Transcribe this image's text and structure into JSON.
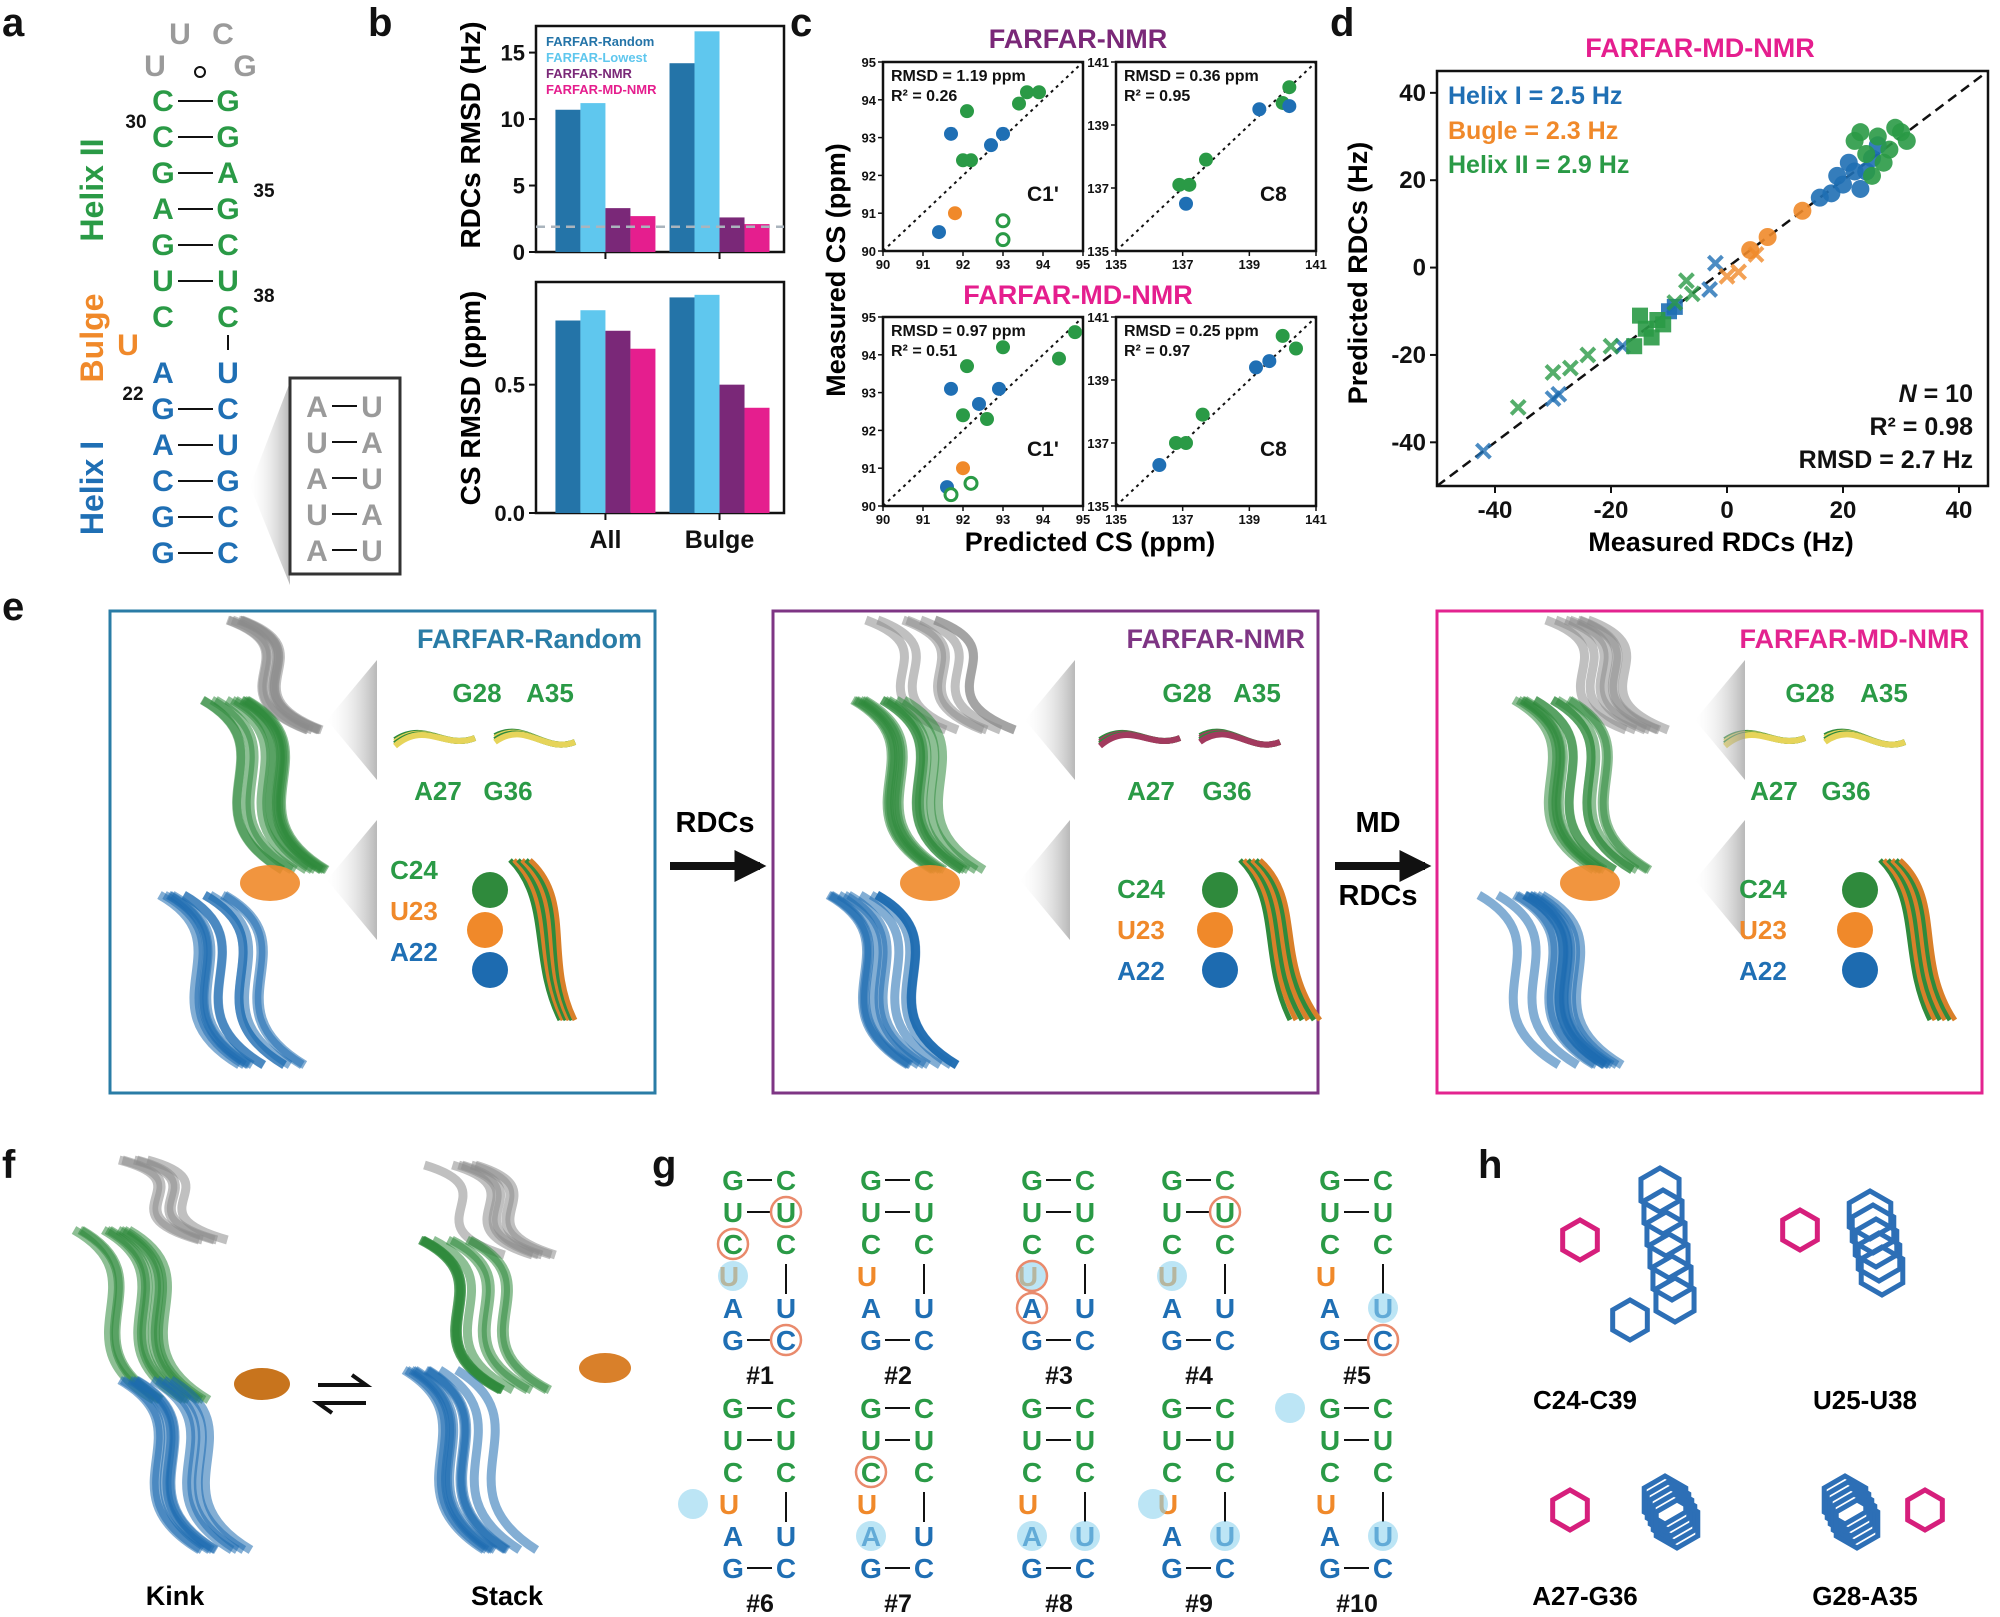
{
  "panel_letters": [
    "a",
    "b",
    "c",
    "d",
    "e",
    "f",
    "g",
    "h"
  ],
  "colors": {
    "helix1": "#1f6fb4",
    "helix2": "#2a9a46",
    "bulge": "#f0892a",
    "loop": "#9a9a9a",
    "random": "#2474a8",
    "lowest": "#5fc7ee",
    "nmr": "#7a2878",
    "mdnmr": "#e51e8e",
    "box_random": "#2a7ca6",
    "box_nmr": "#7e3584",
    "box_mdnmr": "#e3238f"
  },
  "panel_a": {
    "loop": [
      "U",
      "U",
      "C",
      "G"
    ],
    "helix2_left": [
      "C",
      "C",
      "G",
      "A",
      "G",
      "U",
      "C"
    ],
    "helix2_right": [
      "G",
      "G",
      "A",
      "G",
      "C",
      "U",
      "C"
    ],
    "bulge_base": "U",
    "helix1_left": [
      "A",
      "G",
      "A",
      "C",
      "G",
      "G"
    ],
    "helix1_right": [
      "U",
      "C",
      "U",
      "G",
      "C",
      "C"
    ],
    "num30": "30",
    "num35": "35",
    "num38": "38",
    "num22": "22",
    "helix2_label": "Helix II",
    "bulge_label": "Bulge",
    "helix1_label": "Helix I",
    "inset_left": [
      "A",
      "U",
      "A",
      "U",
      "A"
    ],
    "inset_right": [
      "U",
      "A",
      "U",
      "A",
      "U"
    ]
  },
  "panel_b": {
    "top_ylabel": "RDCs RMSD (Hz)",
    "bottom_ylabel": "CS RMSD (ppm)",
    "legend": [
      "FARFAR-Random",
      "FARFAR-Lowest",
      "FARFAR-NMR",
      "FARFAR-MD-NMR"
    ],
    "top_ticks": [
      "0",
      "5",
      "10",
      "15"
    ],
    "bottom_ticks": [
      "0.0",
      "0.5"
    ]
  },
  "panel_c": {
    "title_top": "FARFAR-NMR",
    "title_bottom": "FARFAR-MD-NMR",
    "ylabel": "Measured CS (ppm)",
    "xlabel": "Predicted CS (ppm)",
    "c1_ticks": [
      "90",
      "91",
      "92",
      "93",
      "94",
      "95"
    ],
    "c8_ticks": [
      "135",
      "137",
      "139",
      "141"
    ],
    "tl_stats": [
      "RMSD = 1.19 ppm",
      "R² = 0.26"
    ],
    "tl_label": "C1'",
    "tr_stats": [
      "RMSD = 0.36 ppm",
      "R² = 0.95"
    ],
    "tr_label": "C8",
    "bl_stats": [
      "RMSD = 0.97 ppm",
      "R² = 0.51"
    ],
    "bl_label": "C1'",
    "br_stats": [
      "RMSD = 0.25 ppm",
      "R² = 0.97"
    ],
    "br_label": "C8"
  },
  "panel_d": {
    "title": "FARFAR-MD-NMR",
    "legend": [
      "Helix I = 2.5 Hz",
      "Bugle = 2.3 Hz",
      "Helix II = 2.9 Hz"
    ],
    "stat_n_label": "N",
    "stat_n_value": " = 10",
    "stat_r2": "R² = 0.98",
    "stat_rmsd": "RMSD = 2.7 Hz",
    "xlabel": "Measured RDCs (Hz)",
    "ylabel": "Predicted RDCs (Hz)",
    "xticks": [
      "-40",
      "-20",
      "0",
      "20",
      "40"
    ],
    "yticks": [
      "40",
      "20",
      "0",
      "-20",
      "-40"
    ]
  },
  "panel_e": {
    "boxes": [
      {
        "title": "FARFAR-Random",
        "pair_labels": [
          "G28",
          "A35",
          "A27",
          "G36"
        ],
        "stack_labels": [
          "C24",
          "U23",
          "A22"
        ]
      },
      {
        "title": "FARFAR-NMR",
        "pair_labels": [
          "G28",
          "A35",
          "A27",
          "G36"
        ],
        "stack_labels": [
          "C24",
          "U23",
          "A22"
        ]
      },
      {
        "title": "FARFAR-MD-NMR",
        "pair_labels": [
          "G28",
          "A35",
          "A27",
          "G36"
        ],
        "stack_labels": [
          "C24",
          "U23",
          "A22"
        ]
      }
    ],
    "arrow1": "RDCs",
    "arrow2_top": "MD",
    "arrow2_bottom": "RDCs"
  },
  "panel_f": {
    "left": "Kink",
    "right": "Stack"
  },
  "panel_g": {
    "left_col": [
      "G",
      "U",
      "C",
      "U",
      "A",
      "G"
    ],
    "right_col": [
      "C",
      "U",
      "C",
      "",
      "U",
      "C"
    ],
    "labels": [
      "#1",
      "#2",
      "#3",
      "#4",
      "#5",
      "#6",
      "#7",
      "#8",
      "#9",
      "#10"
    ]
  },
  "panel_h": {
    "labels": [
      "C24-C39",
      "U25-U38",
      "A27-G36",
      "G28-A35"
    ]
  },
  "chart_data": [
    {
      "type": "bar",
      "categories": [
        "All",
        "Bulge"
      ],
      "ylabel": "RDCs RMSD (Hz)",
      "ylim": [
        0,
        17
      ],
      "series": [
        {
          "name": "FARFAR-Random",
          "values": [
            10.7,
            14.2
          ]
        },
        {
          "name": "FARFAR-Lowest",
          "values": [
            11.2,
            16.6
          ]
        },
        {
          "name": "FARFAR-NMR",
          "values": [
            3.3,
            2.6
          ]
        },
        {
          "name": "FARFAR-MD-NMR",
          "values": [
            2.7,
            2.1
          ]
        }
      ],
      "reference_line": 1.9
    },
    {
      "type": "bar",
      "categories": [
        "All",
        "Bulge"
      ],
      "ylabel": "CS RMSD (ppm)",
      "ylim": [
        0,
        0.9
      ],
      "series": [
        {
          "name": "FARFAR-Random",
          "values": [
            0.75,
            0.84
          ]
        },
        {
          "name": "FARFAR-Lowest",
          "values": [
            0.79,
            0.85
          ]
        },
        {
          "name": "FARFAR-NMR",
          "values": [
            0.71,
            0.5
          ]
        },
        {
          "name": "FARFAR-MD-NMR",
          "values": [
            0.64,
            0.41
          ]
        }
      ]
    },
    {
      "type": "scatter",
      "title": "FARFAR-NMR",
      "label": "C1'",
      "xlim": [
        90,
        95
      ],
      "ylim": [
        90,
        95
      ],
      "points": [
        {
          "x": 92.1,
          "y": 93.7,
          "group": "helix2"
        },
        {
          "x": 93.6,
          "y": 94.2,
          "group": "helix2"
        },
        {
          "x": 93.9,
          "y": 94.2,
          "group": "helix2"
        },
        {
          "x": 93.4,
          "y": 93.9,
          "group": "helix2"
        },
        {
          "x": 92.0,
          "y": 92.4,
          "group": "helix2"
        },
        {
          "x": 92.2,
          "y": 92.4,
          "group": "helix2"
        },
        {
          "x": 91.7,
          "y": 93.1,
          "group": "helix1"
        },
        {
          "x": 93.0,
          "y": 93.1,
          "group": "helix1"
        },
        {
          "x": 92.7,
          "y": 92.8,
          "group": "helix1"
        },
        {
          "x": 91.4,
          "y": 90.5,
          "group": "helix1"
        },
        {
          "x": 91.8,
          "y": 91.0,
          "group": "bulge"
        },
        {
          "x": 93.0,
          "y": 90.8,
          "group": "helix2",
          "open": true
        },
        {
          "x": 93.0,
          "y": 90.3,
          "group": "helix2",
          "open": true
        }
      ]
    },
    {
      "type": "scatter",
      "title": "FARFAR-NMR",
      "label": "C8",
      "xlim": [
        135,
        141
      ],
      "ylim": [
        135,
        141
      ],
      "points": [
        {
          "x": 140.2,
          "y": 140.2,
          "group": "helix2"
        },
        {
          "x": 140.0,
          "y": 139.7,
          "group": "helix2"
        },
        {
          "x": 137.7,
          "y": 137.9,
          "group": "helix2"
        },
        {
          "x": 136.9,
          "y": 137.1,
          "group": "helix2"
        },
        {
          "x": 137.2,
          "y": 137.1,
          "group": "helix2"
        },
        {
          "x": 139.3,
          "y": 139.5,
          "group": "helix1"
        },
        {
          "x": 140.2,
          "y": 139.6,
          "group": "helix1"
        },
        {
          "x": 137.1,
          "y": 136.5,
          "group": "helix1"
        }
      ]
    },
    {
      "type": "scatter",
      "title": "FARFAR-MD-NMR",
      "label": "C1'",
      "xlim": [
        90,
        95
      ],
      "ylim": [
        90,
        95
      ],
      "points": [
        {
          "x": 94.8,
          "y": 94.6,
          "group": "helix2"
        },
        {
          "x": 94.4,
          "y": 93.9,
          "group": "helix2"
        },
        {
          "x": 92.1,
          "y": 93.7,
          "group": "helix2"
        },
        {
          "x": 93.0,
          "y": 94.2,
          "group": "helix2"
        },
        {
          "x": 92.0,
          "y": 92.4,
          "group": "helix2"
        },
        {
          "x": 92.6,
          "y": 92.3,
          "group": "helix2"
        },
        {
          "x": 91.7,
          "y": 93.1,
          "group": "helix1"
        },
        {
          "x": 92.9,
          "y": 93.1,
          "group": "helix1"
        },
        {
          "x": 92.4,
          "y": 92.7,
          "group": "helix1"
        },
        {
          "x": 91.6,
          "y": 90.5,
          "group": "helix1"
        },
        {
          "x": 92.0,
          "y": 91.0,
          "group": "bulge"
        },
        {
          "x": 91.7,
          "y": 90.3,
          "group": "helix2",
          "open": true
        },
        {
          "x": 92.2,
          "y": 90.6,
          "group": "helix2",
          "open": true
        }
      ]
    },
    {
      "type": "scatter",
      "title": "FARFAR-MD-NMR",
      "label": "C8",
      "xlim": [
        135,
        141
      ],
      "ylim": [
        135,
        141
      ],
      "points": [
        {
          "x": 140.4,
          "y": 140.0,
          "group": "helix2"
        },
        {
          "x": 140.0,
          "y": 140.4,
          "group": "helix2"
        },
        {
          "x": 137.6,
          "y": 137.9,
          "group": "helix2"
        },
        {
          "x": 136.8,
          "y": 137.0,
          "group": "helix2"
        },
        {
          "x": 137.1,
          "y": 137.0,
          "group": "helix2"
        },
        {
          "x": 139.2,
          "y": 139.4,
          "group": "helix1"
        },
        {
          "x": 139.6,
          "y": 139.6,
          "group": "helix1"
        },
        {
          "x": 136.3,
          "y": 136.3,
          "group": "helix1"
        }
      ]
    },
    {
      "type": "scatter",
      "title": "FARFAR-MD-NMR",
      "xlabel": "Measured RDCs (Hz)",
      "ylabel": "Predicted RDCs (Hz)",
      "xlim": [
        -50,
        45
      ],
      "ylim": [
        -50,
        45
      ],
      "points": [
        {
          "x": 18,
          "y": 17,
          "group": "helix1",
          "m": "o"
        },
        {
          "x": 20,
          "y": 19,
          "group": "helix1",
          "m": "o"
        },
        {
          "x": 22,
          "y": 22,
          "group": "helix1",
          "m": "o"
        },
        {
          "x": 23,
          "y": 18,
          "group": "helix1",
          "m": "o"
        },
        {
          "x": 25,
          "y": 25,
          "group": "helix1",
          "m": "o"
        },
        {
          "x": 16,
          "y": 16,
          "group": "helix1",
          "m": "o"
        },
        {
          "x": 21,
          "y": 24,
          "group": "helix1",
          "m": "o"
        },
        {
          "x": 19,
          "y": 21,
          "group": "helix1",
          "m": "o"
        },
        {
          "x": 26,
          "y": 28,
          "group": "helix1",
          "m": "o"
        },
        {
          "x": 24,
          "y": 22,
          "group": "helix1",
          "m": "o"
        },
        {
          "x": -9,
          "y": -9,
          "group": "helix1",
          "m": "s"
        },
        {
          "x": -10,
          "y": -10,
          "group": "helix1",
          "m": "s"
        },
        {
          "x": -42,
          "y": -42,
          "group": "helix1",
          "m": "x"
        },
        {
          "x": -30,
          "y": -30,
          "group": "helix1",
          "m": "x"
        },
        {
          "x": -29,
          "y": -29,
          "group": "helix1",
          "m": "x"
        },
        {
          "x": -18,
          "y": -18,
          "group": "helix1",
          "m": "x"
        },
        {
          "x": -3,
          "y": -5,
          "group": "helix1",
          "m": "x"
        },
        {
          "x": -2,
          "y": 1,
          "group": "helix1",
          "m": "x"
        },
        {
          "x": 13,
          "y": 13,
          "group": "bulge",
          "m": "o"
        },
        {
          "x": 7,
          "y": 7,
          "group": "bulge",
          "m": "o"
        },
        {
          "x": 4,
          "y": 4,
          "group": "bulge",
          "m": "o"
        },
        {
          "x": 5,
          "y": 3,
          "group": "bulge",
          "m": "x"
        },
        {
          "x": 2,
          "y": -1,
          "group": "bulge",
          "m": "x"
        },
        {
          "x": 0,
          "y": -2,
          "group": "bulge",
          "m": "x"
        },
        {
          "x": 22,
          "y": 29,
          "group": "helix2",
          "m": "o"
        },
        {
          "x": 24,
          "y": 26,
          "group": "helix2",
          "m": "o"
        },
        {
          "x": 26,
          "y": 30,
          "group": "helix2",
          "m": "o"
        },
        {
          "x": 28,
          "y": 27,
          "group": "helix2",
          "m": "o"
        },
        {
          "x": 29,
          "y": 32,
          "group": "helix2",
          "m": "o"
        },
        {
          "x": 27,
          "y": 24,
          "group": "helix2",
          "m": "o"
        },
        {
          "x": 30,
          "y": 31,
          "group": "helix2",
          "m": "o"
        },
        {
          "x": 25,
          "y": 21,
          "group": "helix2",
          "m": "o"
        },
        {
          "x": 23,
          "y": 31,
          "group": "helix2",
          "m": "o"
        },
        {
          "x": 31,
          "y": 29,
          "group": "helix2",
          "m": "o"
        },
        {
          "x": -12,
          "y": -12,
          "group": "helix2",
          "m": "s"
        },
        {
          "x": -14,
          "y": -14,
          "group": "helix2",
          "m": "s"
        },
        {
          "x": -15,
          "y": -11,
          "group": "helix2",
          "m": "s"
        },
        {
          "x": -13,
          "y": -16,
          "group": "helix2",
          "m": "s"
        },
        {
          "x": -16,
          "y": -18,
          "group": "helix2",
          "m": "s"
        },
        {
          "x": -11,
          "y": -13,
          "group": "helix2",
          "m": "s"
        },
        {
          "x": -36,
          "y": -32,
          "group": "helix2",
          "m": "x"
        },
        {
          "x": -30,
          "y": -24,
          "group": "helix2",
          "m": "x"
        },
        {
          "x": -27,
          "y": -23,
          "group": "helix2",
          "m": "x"
        },
        {
          "x": -24,
          "y": -20,
          "group": "helix2",
          "m": "x"
        },
        {
          "x": -20,
          "y": -18,
          "group": "helix2",
          "m": "x"
        },
        {
          "x": -7,
          "y": -3,
          "group": "helix2",
          "m": "x"
        },
        {
          "x": -6,
          "y": -6,
          "group": "helix2",
          "m": "x"
        },
        {
          "x": -9,
          "y": -8,
          "group": "helix2",
          "m": "x"
        }
      ]
    }
  ]
}
